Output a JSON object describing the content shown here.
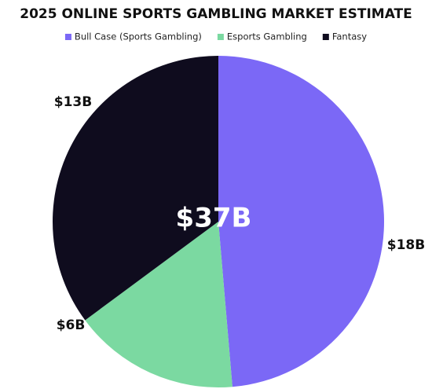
{
  "chart_data": {
    "type": "pie",
    "title": "2025 ONLINE SPORTS GAMBLING MARKET ESTIMATE",
    "categories": [
      "Bull Case (Sports Gambling)",
      "Esports Gambling",
      "Fantasy"
    ],
    "values": [
      18,
      6,
      13
    ],
    "value_labels": [
      "$18B",
      "$6B",
      "$13B"
    ],
    "colors": [
      "#7b68f6",
      "#7bd9a1",
      "#0f0c1e"
    ],
    "center_label": "$37B",
    "legend": "top"
  }
}
